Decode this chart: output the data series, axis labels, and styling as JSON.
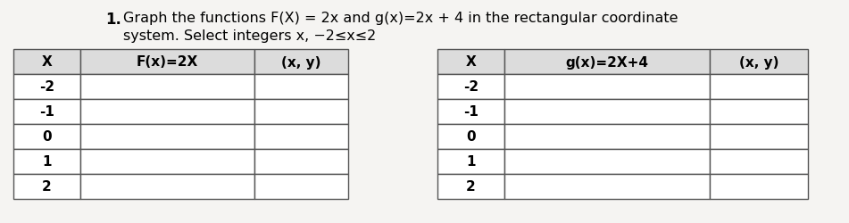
{
  "title_line1": "Graph the functions F(X) = 2x and g(x)=2x + 4 in the rectangular coordinate",
  "title_line2": "system. Select integers x, −2≤x≤2",
  "number": "1.",
  "table1_headers": [
    "X",
    "F(x)=2X",
    "(x, y)"
  ],
  "table2_headers": [
    "X",
    "g(x)=2X+4",
    "(x, y)"
  ],
  "x_values": [
    "-2",
    "-1",
    "0",
    "1",
    "2"
  ],
  "background_color": "#f5f4f2",
  "table_edge_color": "#555555",
  "header_bg": "#dcdcdc",
  "cell_bg": "#ffffff",
  "font_size_title": 11.5,
  "font_size_table": 11,
  "font_size_number": 12
}
